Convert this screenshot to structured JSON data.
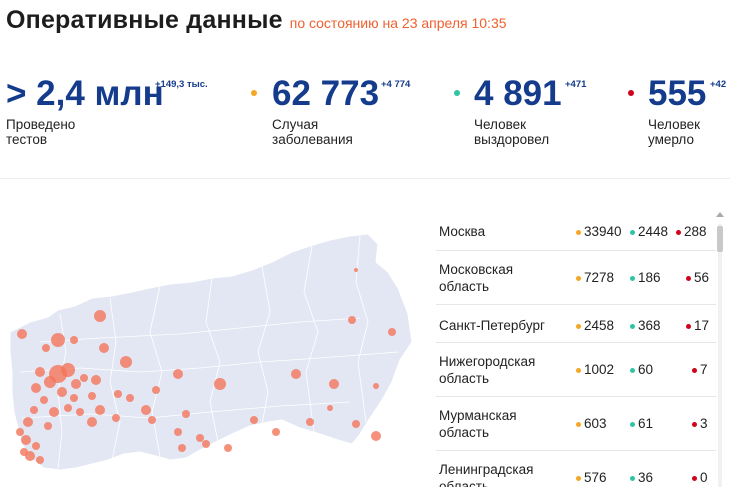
{
  "header": {
    "title": "Оперативные данные",
    "as_of": "по состоянию на 23 апреля 10:35"
  },
  "stats": [
    {
      "value": "> 2,4 млн",
      "delta": "+149,3 тыс.",
      "label_line1": "Проведено",
      "label_line2": "тестов",
      "dot_color": ""
    },
    {
      "value": "62 773",
      "delta": "+4 774",
      "label_line1": "Случая",
      "label_line2": "заболевания",
      "dot_color": "#f5a623"
    },
    {
      "value": "4 891",
      "delta": "+471",
      "label_line1": "Человек",
      "label_line2": "выздоровел",
      "dot_color": "#2fc5a2"
    },
    {
      "value": "555",
      "delta": "+42",
      "label_line1": "Человек",
      "label_line2": "умерло",
      "dot_color": "#d0021b"
    }
  ],
  "colors": {
    "accent_blue": "#143b8c",
    "orange": "#f5a623",
    "teal": "#2fc5a2",
    "red": "#d0021b",
    "map_fill": "#e3e7f4",
    "bubble": "#f2765a"
  },
  "regions": [
    {
      "name": "Москва",
      "cases": "33940",
      "recovered": "2448",
      "deaths": "288"
    },
    {
      "name": "Московская область",
      "cases": "7278",
      "recovered": "186",
      "deaths": "56"
    },
    {
      "name": "Санкт-Петербург",
      "cases": "2458",
      "recovered": "368",
      "deaths": "17"
    },
    {
      "name": "Нижегородская область",
      "cases": "1002",
      "recovered": "60",
      "deaths": "7"
    },
    {
      "name": "Мурманская область",
      "cases": "603",
      "recovered": "61",
      "deaths": "3"
    },
    {
      "name": "Ленинградская область",
      "cases": "576",
      "recovered": "36",
      "deaths": "0"
    }
  ]
}
